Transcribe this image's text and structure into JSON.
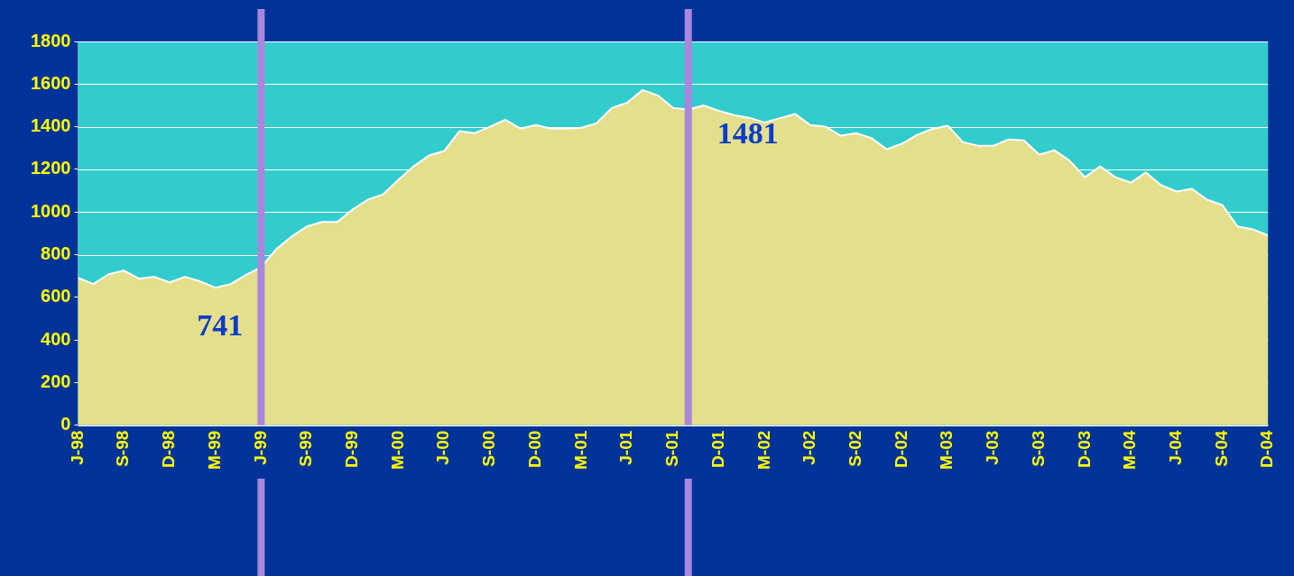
{
  "chart_data": {
    "type": "area",
    "x": [
      "1998-06",
      "1998-07",
      "1998-08",
      "1998-09",
      "1998-10",
      "1998-11",
      "1998-12",
      "1999-01",
      "1999-02",
      "1999-03",
      "1999-04",
      "1999-05",
      "1999-06",
      "1999-07",
      "1999-08",
      "1999-09",
      "1999-10",
      "1999-11",
      "1999-12",
      "2000-01",
      "2000-02",
      "2000-03",
      "2000-04",
      "2000-05",
      "2000-06",
      "2000-07",
      "2000-08",
      "2000-09",
      "2000-10",
      "2000-11",
      "2000-12",
      "2001-01",
      "2001-02",
      "2001-03",
      "2001-04",
      "2001-05",
      "2001-06",
      "2001-07",
      "2001-08",
      "2001-09",
      "2001-10",
      "2001-11",
      "2001-12",
      "2002-01",
      "2002-02",
      "2002-03",
      "2002-04",
      "2002-05",
      "2002-06",
      "2002-07",
      "2002-08",
      "2002-09",
      "2002-10",
      "2002-11",
      "2002-12",
      "2003-01",
      "2003-02",
      "2003-03",
      "2003-04",
      "2003-05",
      "2003-06",
      "2003-07",
      "2003-08",
      "2003-09",
      "2003-10",
      "2003-11",
      "2003-12",
      "2004-01",
      "2004-02",
      "2004-03",
      "2004-04",
      "2004-05",
      "2004-06",
      "2004-07",
      "2004-08",
      "2004-09",
      "2004-10",
      "2004-11",
      "2004-12"
    ],
    "series": [
      {
        "color": "#e4df8a",
        "values": [
          691,
          662,
          708,
          725,
          687,
          696,
          670,
          696,
          675,
          645,
          662,
          704,
          741,
          826,
          885,
          932,
          953,
          953,
          1012,
          1058,
          1083,
          1151,
          1214,
          1265,
          1286,
          1379,
          1370,
          1400,
          1433,
          1391,
          1408,
          1391,
          1391,
          1395,
          1417,
          1488,
          1513,
          1572,
          1547,
          1488,
          1481,
          1500,
          1475,
          1454,
          1442,
          1420,
          1440,
          1460,
          1408,
          1400,
          1358,
          1370,
          1347,
          1294,
          1320,
          1362,
          1390,
          1405,
          1328,
          1311,
          1311,
          1340,
          1336,
          1269,
          1290,
          1240,
          1163,
          1214,
          1163,
          1138,
          1185,
          1126,
          1096,
          1109,
          1058,
          1033,
          932,
          919,
          890
        ]
      }
    ],
    "xlim": [
      "1998-06",
      "2004-12"
    ],
    "xticks": [
      {
        "value": "1998-06",
        "label": "J-98"
      },
      {
        "value": "1998-09",
        "label": "S-98"
      },
      {
        "value": "1998-12",
        "label": "D-98"
      },
      {
        "value": "1999-03",
        "label": "M-99"
      },
      {
        "value": "1999-06",
        "label": "J-99"
      },
      {
        "value": "1999-09",
        "label": "S-99"
      },
      {
        "value": "1999-12",
        "label": "D-99"
      },
      {
        "value": "2000-03",
        "label": "M-00"
      },
      {
        "value": "2000-06",
        "label": "J-00"
      },
      {
        "value": "2000-09",
        "label": "S-00"
      },
      {
        "value": "2000-12",
        "label": "D-00"
      },
      {
        "value": "2001-03",
        "label": "M-01"
      },
      {
        "value": "2001-06",
        "label": "J-01"
      },
      {
        "value": "2001-09",
        "label": "S-01"
      },
      {
        "value": "2001-12",
        "label": "D-01"
      },
      {
        "value": "2002-03",
        "label": "M-02"
      },
      {
        "value": "2002-06",
        "label": "J-02"
      },
      {
        "value": "2002-09",
        "label": "S-02"
      },
      {
        "value": "2002-12",
        "label": "D-02"
      },
      {
        "value": "2003-03",
        "label": "M-03"
      },
      {
        "value": "2003-06",
        "label": "J-03"
      },
      {
        "value": "2003-09",
        "label": "S-03"
      },
      {
        "value": "2003-12",
        "label": "D-03"
      },
      {
        "value": "2004-03",
        "label": "M-04"
      },
      {
        "value": "2004-06",
        "label": "J-04"
      },
      {
        "value": "2004-09",
        "label": "S-04"
      },
      {
        "value": "2004-12",
        "label": "D-04"
      }
    ],
    "ylim": [
      0,
      1800
    ],
    "yticks": [
      0,
      200,
      400,
      600,
      800,
      1000,
      1200,
      1400,
      1600,
      1800
    ],
    "grid": "y",
    "bands": [
      {
        "axis": "y",
        "from": 0,
        "to": 1800,
        "color": "#33cccc"
      }
    ],
    "ref_lines": [
      {
        "axis": "x",
        "value": "1999-06",
        "color": "#a987dd"
      },
      {
        "axis": "x",
        "value": "2001-10",
        "color": "#a987dd"
      }
    ],
    "annotations": [
      {
        "text": "741",
        "x": "1999-06",
        "y": 741
      },
      {
        "text": "1481",
        "x": "2001-10",
        "y": 1481
      }
    ]
  }
}
